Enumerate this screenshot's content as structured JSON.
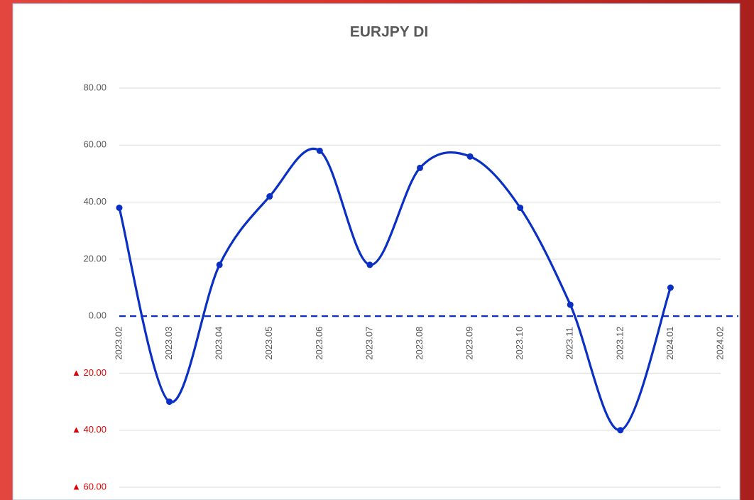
{
  "chart_data": {
    "type": "line",
    "title": "EURJPY DI",
    "categories": [
      "2023.02",
      "2023.03",
      "2023.04",
      "2023.05",
      "2023.06",
      "2023.07",
      "2023.08",
      "2023.09",
      "2023.10",
      "2023.11",
      "2023.12",
      "2024.01",
      "2024.02"
    ],
    "values": [
      38,
      -30,
      18,
      42,
      58,
      18,
      52,
      56,
      38,
      4,
      -40,
      10,
      null
    ],
    "color": "#0a2fc4",
    "ylim": [
      -60,
      80
    ],
    "yticks": [
      {
        "value": -60,
        "label": "▲ 60.00"
      },
      {
        "value": -40,
        "label": "▲ 40.00"
      },
      {
        "value": -20,
        "label": "▲ 20.00"
      },
      {
        "value": 0,
        "label": "0.00"
      },
      {
        "value": 20,
        "label": "20.00"
      },
      {
        "value": 40,
        "label": "40.00"
      },
      {
        "value": 60,
        "label": "60.00"
      },
      {
        "value": 80,
        "label": "80.00"
      }
    ],
    "negative_tick_color": "#e00000",
    "grid": true,
    "smooth": true
  }
}
